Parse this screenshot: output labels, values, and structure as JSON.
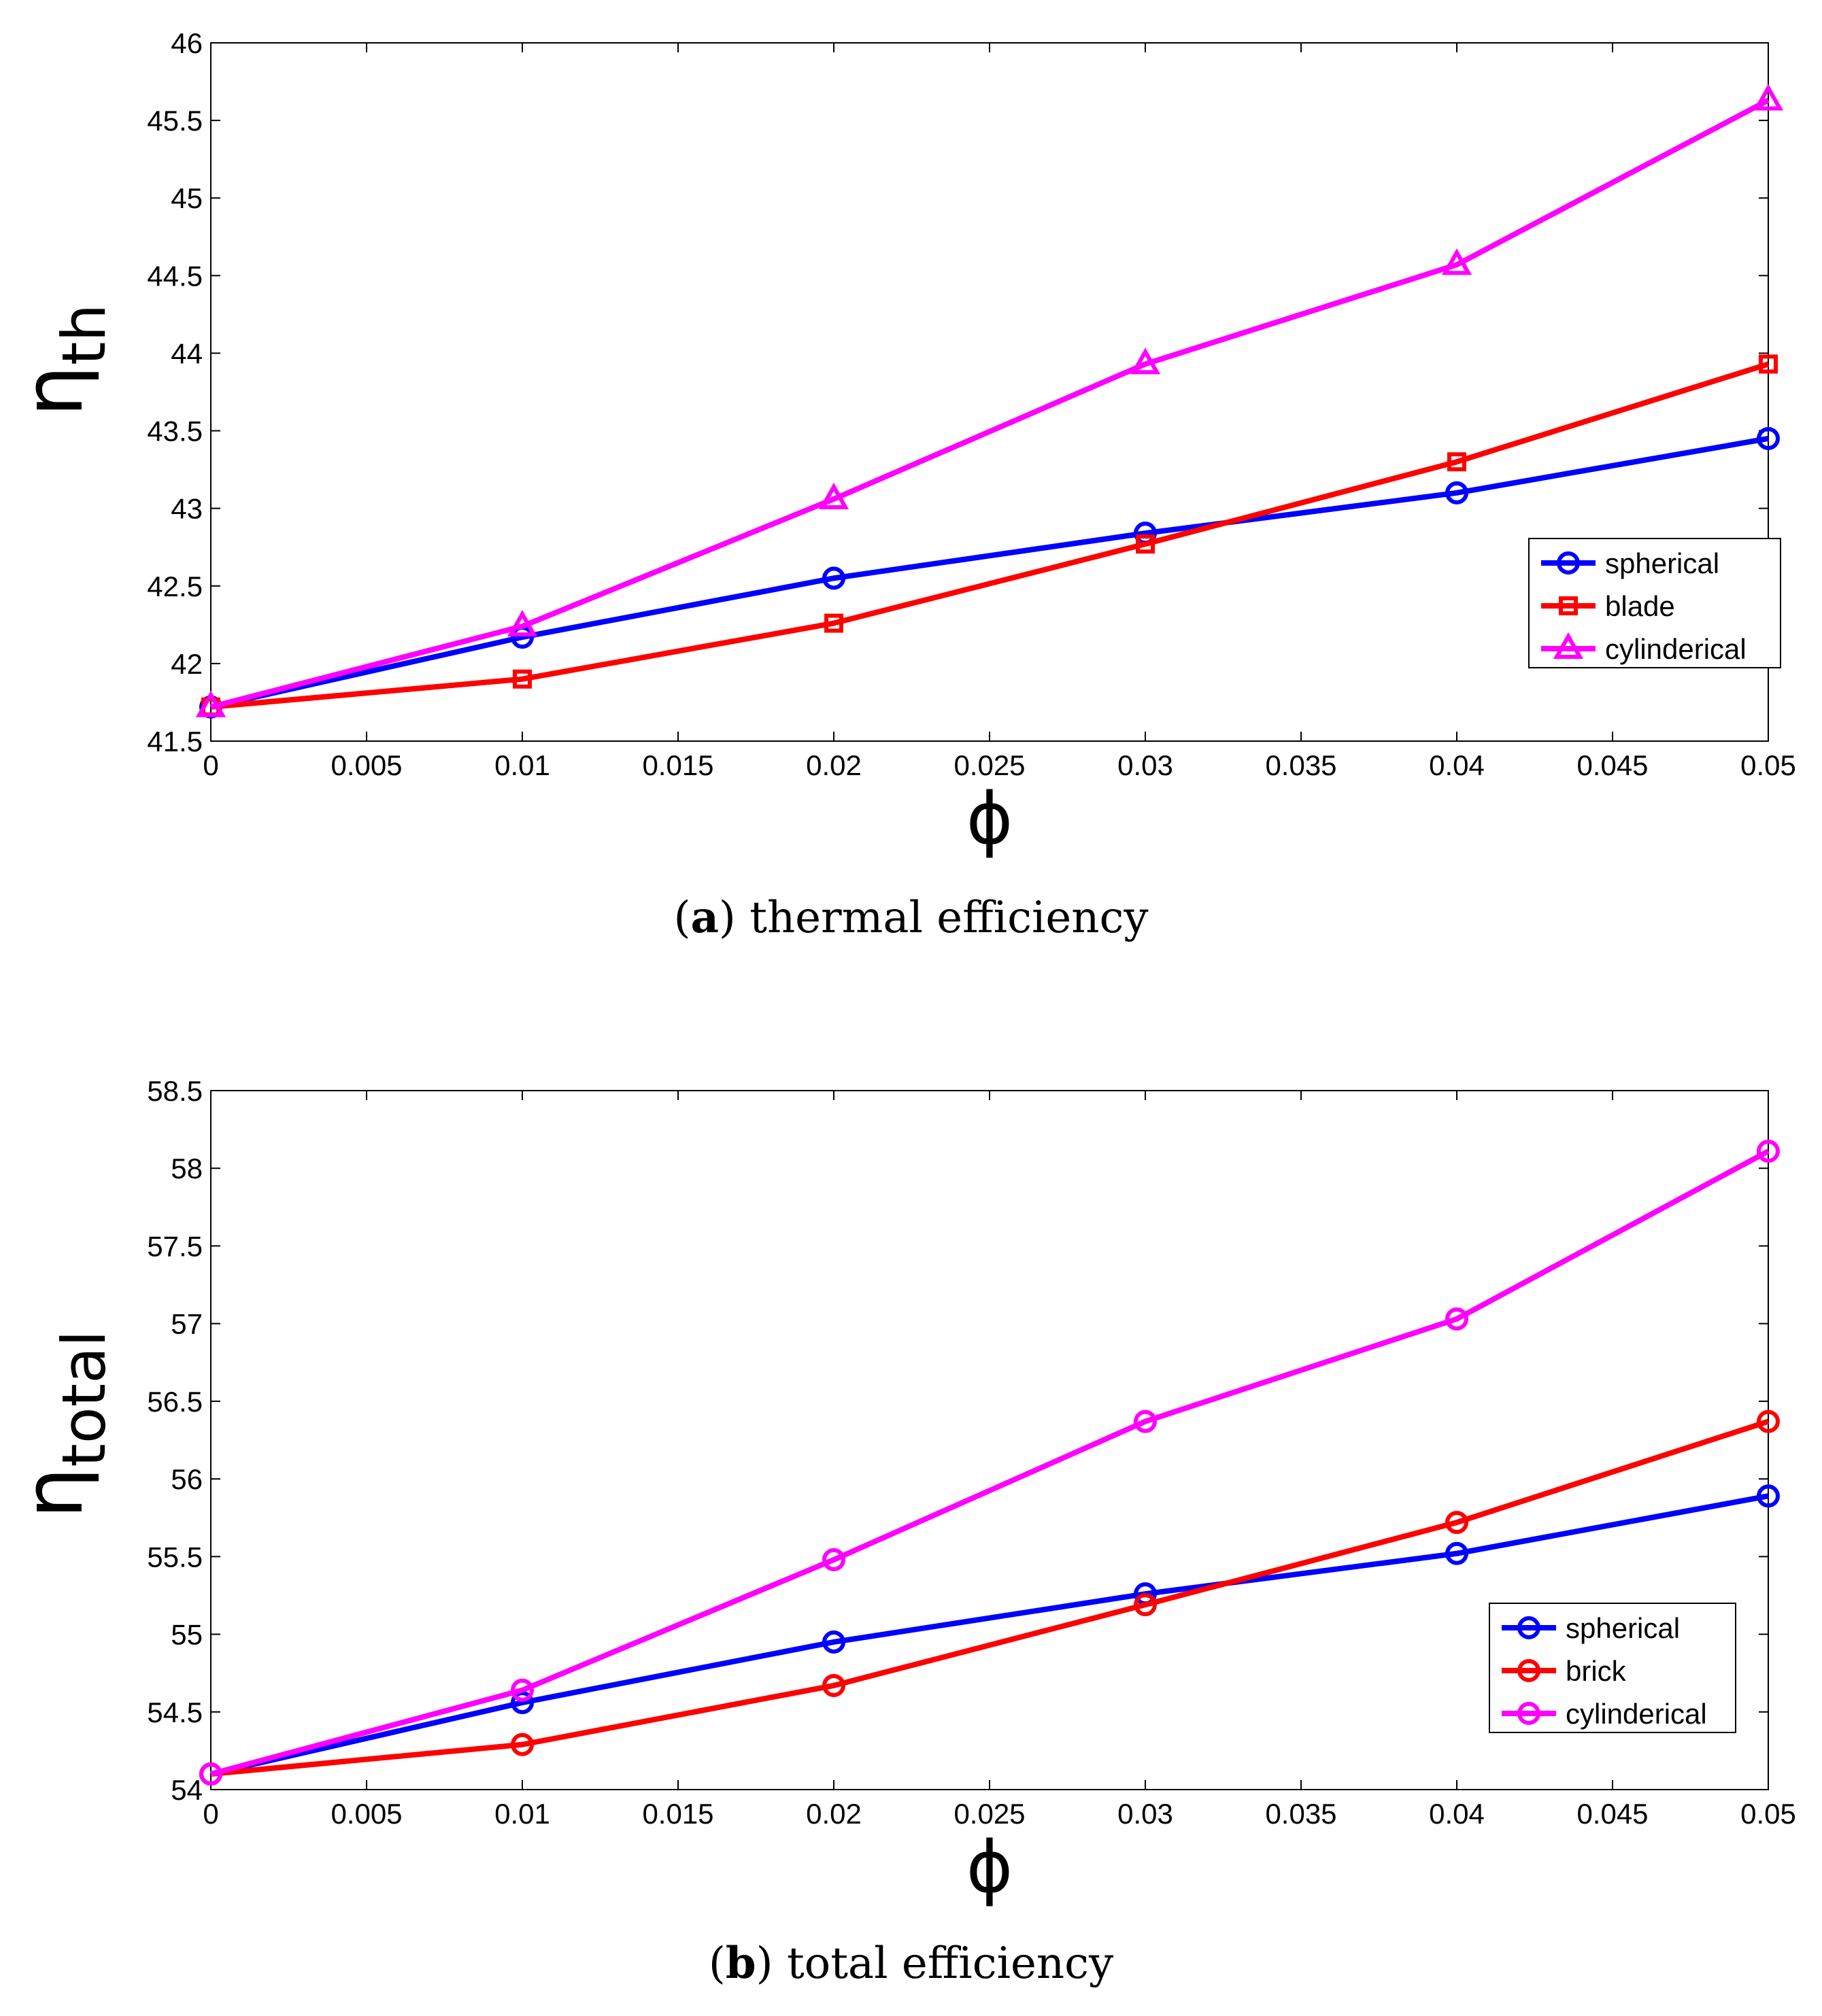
{
  "chart_data": [
    {
      "type": "line",
      "caption_letter": "a",
      "caption_text": "thermal efficiency",
      "xlabel": "ϕ",
      "ylabel_main": "η",
      "ylabel_sub": "th",
      "xlim": [
        0,
        0.05
      ],
      "ylim": [
        41.5,
        46
      ],
      "xticks": [
        0,
        0.005,
        0.01,
        0.015,
        0.02,
        0.025,
        0.03,
        0.035,
        0.04,
        0.045,
        0.05
      ],
      "xtick_labels": [
        "0",
        "0.005",
        "0.01",
        "0.015",
        "0.02",
        "0.025",
        "0.03",
        "0.035",
        "0.04",
        "0.045",
        "0.05"
      ],
      "yticks": [
        41.5,
        42,
        42.5,
        43,
        43.5,
        44,
        44.5,
        45,
        45.5,
        46
      ],
      "ytick_labels": [
        "41.5",
        "42",
        "42.5",
        "43",
        "43.5",
        "44",
        "44.5",
        "45",
        "45.5",
        "46"
      ],
      "x": [
        0,
        0.01,
        0.02,
        0.03,
        0.04,
        0.05
      ],
      "legend_position": "right-middle",
      "series": [
        {
          "name": "spherical",
          "color": "#0000ff",
          "marker": "circle",
          "values": [
            41.72,
            42.17,
            42.55,
            42.84,
            43.1,
            43.45
          ]
        },
        {
          "name": "blade",
          "color": "#ff0000",
          "marker": "square",
          "values": [
            41.72,
            41.9,
            42.26,
            42.77,
            43.3,
            43.93
          ]
        },
        {
          "name": "cylinderical",
          "color": "#ff00ff",
          "marker": "triangle",
          "values": [
            41.72,
            42.24,
            43.06,
            43.93,
            44.57,
            45.63
          ]
        }
      ]
    },
    {
      "type": "line",
      "caption_letter": "b",
      "caption_text": "total efficiency",
      "xlabel": "ϕ",
      "ylabel_main": "η",
      "ylabel_sub": "total",
      "xlim": [
        0,
        0.05
      ],
      "ylim": [
        54,
        58.5
      ],
      "xticks": [
        0,
        0.005,
        0.01,
        0.015,
        0.02,
        0.025,
        0.03,
        0.035,
        0.04,
        0.045,
        0.05
      ],
      "xtick_labels": [
        "0",
        "0.005",
        "0.01",
        "0.015",
        "0.02",
        "0.025",
        "0.03",
        "0.035",
        "0.04",
        "0.045",
        "0.05"
      ],
      "yticks": [
        54,
        54.5,
        55,
        55.5,
        56,
        56.5,
        57,
        57.5,
        58,
        58.5
      ],
      "ytick_labels": [
        "54",
        "54.5",
        "55",
        "55.5",
        "56",
        "56.5",
        "57",
        "57.5",
        "58",
        "58.5"
      ],
      "x": [
        0,
        0.01,
        0.02,
        0.03,
        0.04,
        0.05
      ],
      "legend_position": "bottom-right",
      "series": [
        {
          "name": "spherical",
          "color": "#0000ff",
          "marker": "circle",
          "values": [
            54.1,
            54.56,
            54.95,
            55.26,
            55.52,
            55.89
          ]
        },
        {
          "name": "brick",
          "color": "#ff0000",
          "marker": "circle",
          "values": [
            54.1,
            54.29,
            54.67,
            55.19,
            55.72,
            56.37
          ]
        },
        {
          "name": "cylinderical",
          "color": "#ff00ff",
          "marker": "circle",
          "values": [
            54.1,
            54.64,
            55.48,
            56.37,
            57.03,
            58.11
          ]
        }
      ]
    }
  ]
}
